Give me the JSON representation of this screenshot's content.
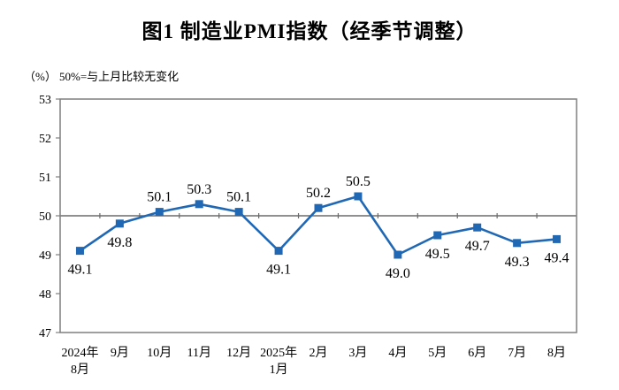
{
  "header": {
    "title": "图1 制造业PMI指数（经季节调整）"
  },
  "chart_data": {
    "type": "line",
    "title": "图1 制造业PMI指数（经季节调整）",
    "unit_label": "（%）",
    "note": "50%=与上月比较无变化",
    "categories": [
      [
        "2024年",
        "8月"
      ],
      [
        "9月"
      ],
      [
        "10月"
      ],
      [
        "11月"
      ],
      [
        "12月"
      ],
      [
        "2025年",
        "1月"
      ],
      [
        "2月"
      ],
      [
        "3月"
      ],
      [
        "4月"
      ],
      [
        "5月"
      ],
      [
        "6月"
      ],
      [
        "7月"
      ],
      [
        "8月"
      ]
    ],
    "values": [
      49.1,
      49.8,
      50.1,
      50.3,
      50.1,
      49.1,
      50.2,
      50.5,
      49.0,
      49.5,
      49.7,
      49.3,
      49.4
    ],
    "data_labels": [
      "49.1",
      "49.8",
      "50.1",
      "50.3",
      "50.1",
      "49.1",
      "50.2",
      "50.5",
      "49.0",
      "49.5",
      "49.7",
      "49.3",
      "49.4"
    ],
    "ylim": [
      47,
      53
    ],
    "y_ticks": [
      "47",
      "48",
      "49",
      "50",
      "51",
      "52",
      "53"
    ],
    "reference_line": 50,
    "grid": false,
    "legend": "none",
    "marker": "square",
    "colors": {
      "line": "#2068B4",
      "marker": "#2068B4",
      "axis": "#7f7f7f",
      "reference_line": "#6b6b6b",
      "text": "#000000"
    }
  }
}
